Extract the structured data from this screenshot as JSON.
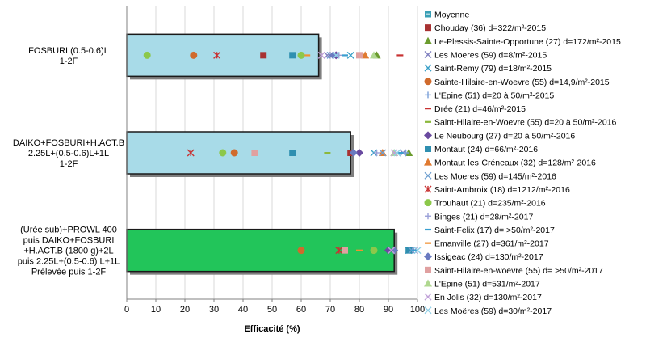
{
  "chart_data": {
    "type": "bar",
    "orientation": "horizontal",
    "xlabel": "Efficacité (%)",
    "xlim": [
      0,
      100
    ],
    "xticks": [
      0,
      10,
      20,
      30,
      40,
      50,
      60,
      70,
      80,
      90,
      100
    ],
    "grid": "vertical",
    "legend_position": "right",
    "categories": [
      {
        "lines": [
          "FOSBURI (0.5-0.6)L",
          "1-2F"
        ],
        "mean": 66,
        "color": "#a8dbe8"
      },
      {
        "lines": [
          "DAIKO+FOSBURI+H.ACT.B",
          "2.25L+(0.5-0.6)L+1L",
          "1-2F"
        ],
        "mean": 77,
        "color": "#a8dbe8"
      },
      {
        "lines": [
          "(Urée sub)+PROWL 400",
          "puis DAIKO+FOSBURI",
          "+H.ACT.B (1800 g)+2L",
          "puis 2.25L+(0.5-0.6) L+1L",
          "Prélevée puis 1-2F"
        ],
        "mean": 92,
        "color": "#22c55a"
      }
    ],
    "series": [
      {
        "name": "Moyenne",
        "marker": "bar",
        "color": "#3a9fb5",
        "values": [
          66,
          77,
          92
        ]
      },
      {
        "name": "Chouday (36) d=322/m²-2015",
        "marker": "square",
        "color": "#a83232",
        "values": [
          47,
          77,
          null
        ]
      },
      {
        "name": "Le-Plessis-Sainte-Opportune (27) d=172/m²-2015",
        "marker": "triangle",
        "color": "#6b9c2e",
        "values": [
          86,
          97,
          null
        ]
      },
      {
        "name": "Les Moeres (59) d=8/m²-2015",
        "marker": "x",
        "color": "#8080c0",
        "values": [
          69,
          95,
          99
        ]
      },
      {
        "name": "Saint-Remy (79) d=18/m²-2015",
        "marker": "x",
        "color": "#3aa0c8",
        "values": [
          77,
          85,
          97
        ]
      },
      {
        "name": "Sainte-Hilaire-en-Woevre (55) d=14,9/m²-2015",
        "marker": "circle",
        "color": "#d06a2c",
        "values": [
          23,
          37,
          null
        ]
      },
      {
        "name": "L'Epine (51) d=20 à 50/m²-2015",
        "marker": "plus",
        "color": "#7aa0d8",
        "values": [
          71,
          96,
          null
        ]
      },
      {
        "name": "Drée (21) d=46/m²-2015",
        "marker": "dash",
        "color": "#c83232",
        "values": [
          94,
          null,
          null
        ]
      },
      {
        "name": "Saint-Hilaire-en-Woevre (55) d=20 à 50/m²-2016",
        "marker": "dash",
        "color": "#8cb83c",
        "values": [
          null,
          69,
          null
        ]
      },
      {
        "name": "Le Neubourg (27) d=20 à 50/m²-2016",
        "marker": "diamond",
        "color": "#6a4aa0",
        "values": [
          72,
          80,
          90
        ]
      },
      {
        "name": "Montaut (24) d=66/m²-2016",
        "marker": "square",
        "color": "#2f8fb0",
        "values": [
          57,
          57,
          97
        ]
      },
      {
        "name": "Montaut-les-Créneaux (32) d=128/m²-2016",
        "marker": "triangle",
        "color": "#e07a30",
        "values": [
          82,
          88,
          null
        ]
      },
      {
        "name": "Les Moeres (59) d=145/m²-2016",
        "marker": "x",
        "color": "#6fa0d0",
        "values": [
          70,
          88,
          98
        ]
      },
      {
        "name": "Saint-Ambroix (18) d=1212/m²-2016",
        "marker": "star",
        "color": "#c83232",
        "values": [
          31,
          22,
          73
        ]
      },
      {
        "name": "Trouhaut (21) d=235/m²-2016",
        "marker": "circle",
        "color": "#8cc84a",
        "values": [
          7,
          33,
          85
        ]
      },
      {
        "name": "Binges (21) d=28/m²-2017",
        "marker": "plus",
        "color": "#9aa0d8",
        "values": [
          73,
          86,
          null
        ]
      },
      {
        "name": "Saint-Felix (17) d= >50/m²-2017",
        "marker": "dash",
        "color": "#3a9fd0",
        "values": [
          75,
          94,
          99
        ]
      },
      {
        "name": "Emanville (27) d=361/m²-2017",
        "marker": "dash",
        "color": "#f09030",
        "values": [
          62,
          null,
          80
        ]
      },
      {
        "name": "Issigeac (24) d=130/m²-2017",
        "marker": "diamond",
        "color": "#6a7ac0",
        "values": [
          71,
          78,
          92
        ]
      },
      {
        "name": "Saint-Hilaire-en-woevre (55) d= >50/m²-2017",
        "marker": "square",
        "color": "#e0a0a0",
        "values": [
          80,
          44,
          75
        ]
      },
      {
        "name": "L'Epine (51) d=531/m²-2017",
        "marker": "triangle",
        "color": "#b0d890",
        "values": [
          85,
          92,
          null
        ]
      },
      {
        "name": "En Jolis (32) d=130/m²-2017",
        "marker": "x",
        "color": "#c0a0d8",
        "values": [
          67,
          92,
          91
        ]
      },
      {
        "name": "Les Moëres (59) d=30/m²-2017",
        "marker": "x",
        "color": "#90d0e8",
        "values": [
          72,
          93,
          100
        ]
      }
    ],
    "extra_points": [
      {
        "category": 0,
        "x": 60,
        "marker": "circle",
        "color": "#8cc84a"
      },
      {
        "category": 2,
        "x": 60,
        "marker": "circle",
        "color": "#d06a2c"
      }
    ]
  }
}
